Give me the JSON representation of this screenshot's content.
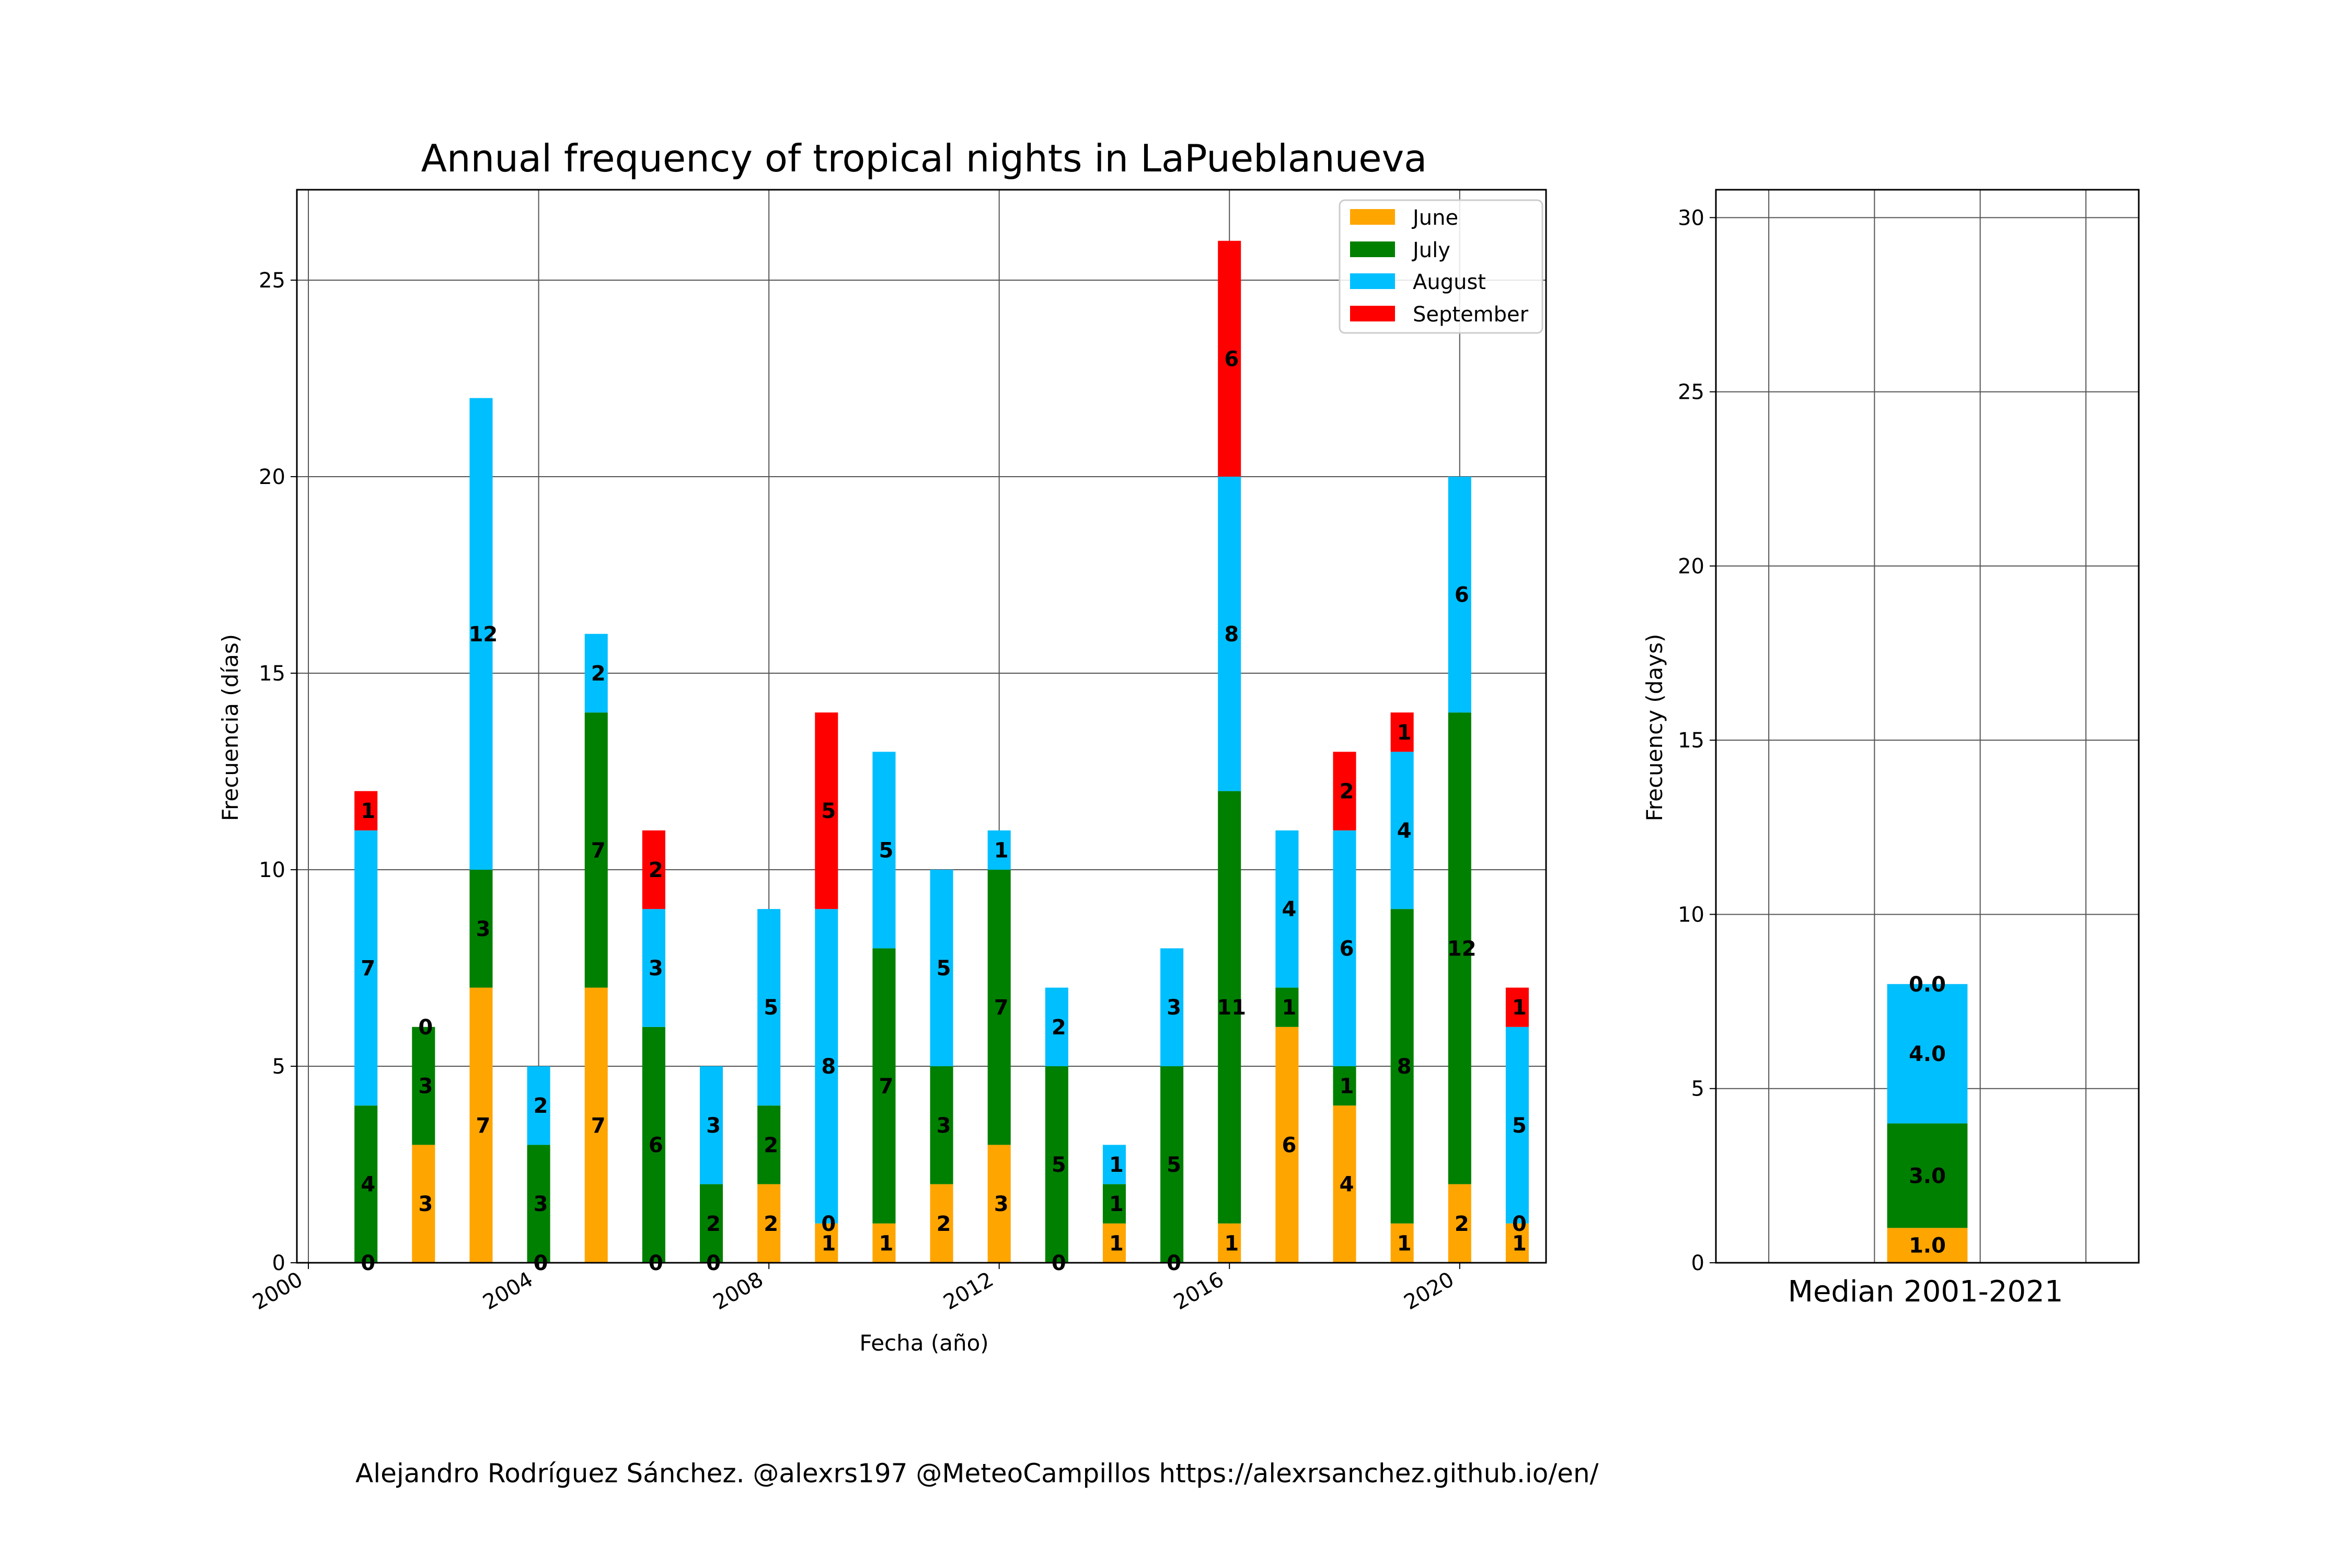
{
  "chart_data": [
    {
      "type": "bar",
      "stacked": true,
      "title": "Annual frequency of tropical nights in LaPueblanueva",
      "xlabel": "Fecha (año)",
      "ylabel": "Frecuencia (días)",
      "xlim": [
        1999.8,
        2021.5
      ],
      "ylim": [
        0,
        27.3
      ],
      "xticks": [
        2000,
        2004,
        2008,
        2012,
        2016,
        2020
      ],
      "xtick_labels": [
        "2000",
        "2004",
        "2008",
        "2012",
        "2016",
        "2020"
      ],
      "yticks": [
        0,
        5,
        10,
        15,
        20,
        25
      ],
      "ytick_labels": [
        "0",
        "5",
        "10",
        "15",
        "20",
        "25"
      ],
      "grid": true,
      "legend_position": "top-right",
      "x": [
        2001,
        2002,
        2003,
        2004,
        2005,
        2006,
        2007,
        2008,
        2009,
        2010,
        2011,
        2012,
        2013,
        2014,
        2015,
        2016,
        2017,
        2018,
        2019,
        2020,
        2021
      ],
      "series": [
        {
          "name": "June",
          "color": "#ffa500",
          "values": [
            0,
            3,
            7,
            0,
            7,
            0,
            0,
            2,
            1,
            1,
            2,
            3,
            0,
            1,
            0,
            1,
            6,
            4,
            1,
            2,
            1
          ]
        },
        {
          "name": "July",
          "color": "#008000",
          "values": [
            4,
            3,
            3,
            3,
            7,
            6,
            2,
            2,
            0,
            7,
            3,
            7,
            5,
            1,
            5,
            11,
            1,
            1,
            8,
            12,
            0
          ]
        },
        {
          "name": "August",
          "color": "#00bfff",
          "values": [
            7,
            0,
            12,
            2,
            2,
            3,
            3,
            5,
            8,
            5,
            5,
            1,
            2,
            1,
            3,
            8,
            4,
            6,
            4,
            6,
            5
          ]
        },
        {
          "name": "September",
          "color": "#ff0000",
          "values": [
            1,
            0,
            0,
            0,
            0,
            2,
            0,
            0,
            5,
            0,
            0,
            0,
            0,
            0,
            0,
            6,
            0,
            2,
            1,
            0,
            1
          ]
        }
      ]
    },
    {
      "type": "bar",
      "stacked": true,
      "xlabel": "Median 2001-2021",
      "ylabel": "Frecuency (days)",
      "ylim": [
        0,
        30.8
      ],
      "yticks": [
        0,
        5,
        10,
        15,
        20,
        25,
        30
      ],
      "ytick_labels": [
        "0",
        "5",
        "10",
        "15",
        "20",
        "25",
        "30"
      ],
      "grid": true,
      "series": [
        {
          "name": "June",
          "color": "#ffa500",
          "value": 1.0,
          "label": "1.0"
        },
        {
          "name": "July",
          "color": "#008000",
          "value": 3.0,
          "label": "3.0"
        },
        {
          "name": "August",
          "color": "#00bfff",
          "value": 4.0,
          "label": "4.0"
        },
        {
          "name": "September",
          "color": "#ff0000",
          "value": 0.0,
          "label": "0.0"
        }
      ]
    }
  ],
  "footer": "Alejandro Rodríguez Sánchez. @alexrs197 @MeteoCampillos   https://alexrsanchez.github.io/en/"
}
